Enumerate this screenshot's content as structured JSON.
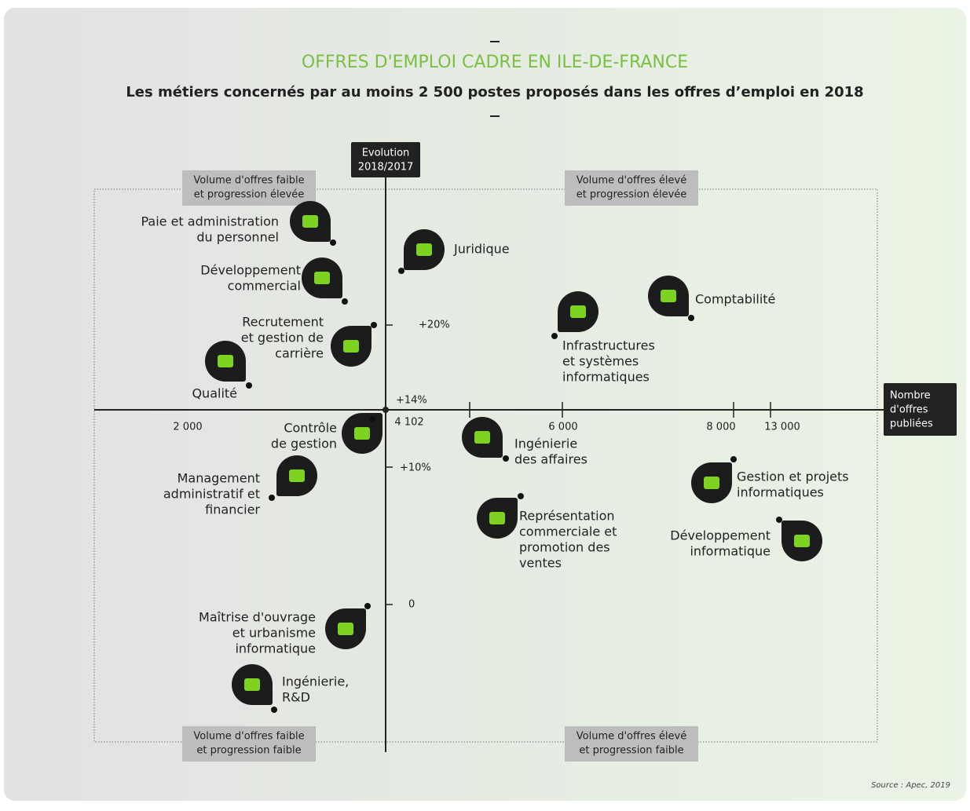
{
  "header": {
    "title": "OFFRES D'EMPLOI CADRE EN ILE-DE-FRANCE",
    "subtitle": "Les métiers concernés par au moins 2 500 postes proposés dans les offres d’emploi en 2018"
  },
  "axes": {
    "y_label": [
      "Evolution",
      "2018/2017"
    ],
    "x_label": [
      "Nombre",
      "d'offres",
      "publiées"
    ],
    "x_ticks": [
      "2 000",
      "4 102",
      "6 000",
      "8 000",
      "13 000"
    ],
    "y_ticks": [
      "+20%",
      "+14%",
      "+10%",
      "0"
    ]
  },
  "quadrants": [
    [
      "Volume d'offres faible",
      "et progression élevée"
    ],
    [
      "Volume d'offres élevé",
      "et progression élevée"
    ],
    [
      "Volume d'offres faible",
      "et progression faible"
    ],
    [
      "Volume d'offres élevé",
      "et progression faible"
    ]
  ],
  "nodes": [
    {
      "label": [
        "Paie et administration",
        "du personnel"
      ]
    },
    {
      "label": [
        "Développement",
        "commercial"
      ]
    },
    {
      "label": [
        "Recrutement",
        "et gestion de",
        "carrière"
      ]
    },
    {
      "label": [
        "Qualité"
      ]
    },
    {
      "label": [
        "Juridique"
      ]
    },
    {
      "label": [
        "Comptabilité"
      ]
    },
    {
      "label": [
        "Infrastructures",
        "et systèmes",
        "informatiques"
      ]
    },
    {
      "label": [
        "Contrôle",
        "de gestion"
      ]
    },
    {
      "label": [
        "Management",
        "administratif et",
        "financier"
      ]
    },
    {
      "label": [
        "Ingénierie",
        "des affaires"
      ]
    },
    {
      "label": [
        "Gestion et projets",
        "informatiques"
      ]
    },
    {
      "label": [
        "Représentation",
        "commerciale et",
        "promotion des",
        "ventes"
      ]
    },
    {
      "label": [
        "Développement",
        "informatique"
      ]
    },
    {
      "label": [
        "Maîtrise d'ouvrage",
        "et urbanisme",
        "informatique"
      ]
    },
    {
      "label": [
        "Ingénierie,",
        "R&D"
      ]
    }
  ],
  "source": "Source : Apec, 2019"
}
